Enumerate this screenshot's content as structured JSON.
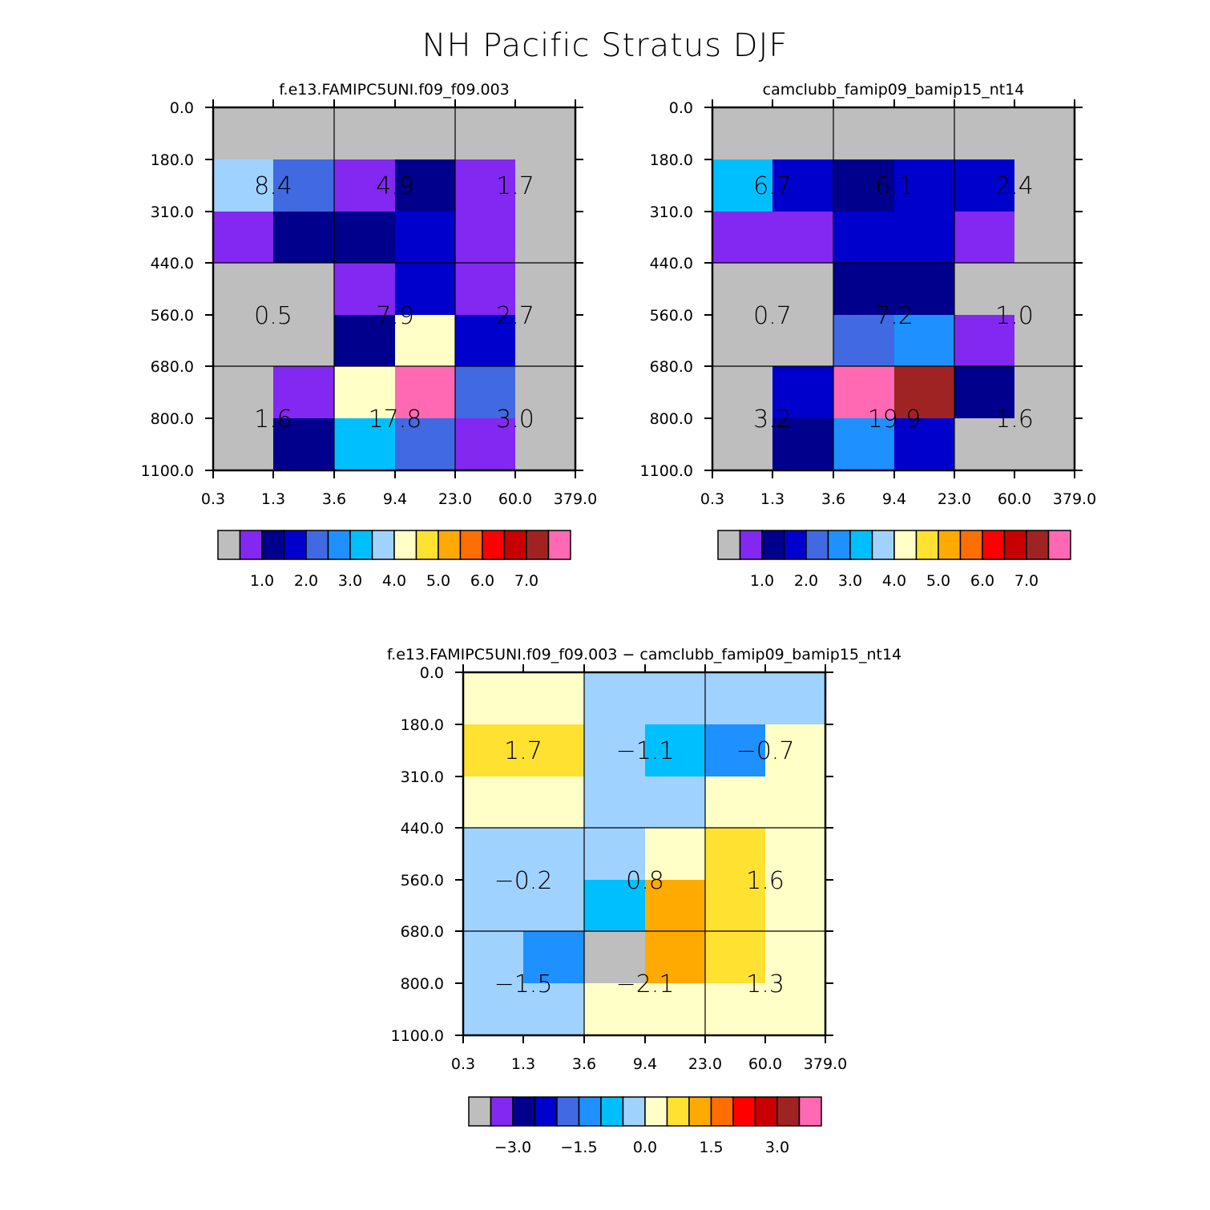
{
  "title": "NH Pacific Stratus DJF",
  "x_ticks": [
    "0.3",
    "1.3",
    "3.6",
    "9.4",
    "23.0",
    "60.0",
    "379.0"
  ],
  "y_ticks": [
    "0.0",
    "180.0",
    "310.0",
    "440.0",
    "560.0",
    "680.0",
    "800.0",
    "1100.0"
  ],
  "colormap": [
    "#bebebe",
    "#8228f0",
    "#00008c",
    "#0000cd",
    "#4169e1",
    "#1e90ff",
    "#00bfff",
    "#a0d2ff",
    "#ffffc8",
    "#ffe132",
    "#ffaa00",
    "#ff6e00",
    "#ff0000",
    "#c80000",
    "#a02323",
    "#ff69b4"
  ],
  "chart_data": [
    {
      "type": "heatmap",
      "title": "f.e13.FAMIPC5UNI.f09_f09.003",
      "cell_index_grid": [
        [
          0,
          0,
          0,
          0,
          0,
          0
        ],
        [
          7,
          4,
          1,
          2,
          1,
          0
        ],
        [
          1,
          2,
          2,
          3,
          1,
          0
        ],
        [
          0,
          0,
          1,
          3,
          1,
          0
        ],
        [
          0,
          0,
          2,
          8,
          3,
          0
        ],
        [
          0,
          1,
          8,
          15,
          4,
          0
        ],
        [
          0,
          2,
          6,
          4,
          1,
          0
        ]
      ],
      "box_labels": [
        [
          "8.4",
          "4.9",
          "1.7"
        ],
        [
          "0.5",
          "7.9",
          "2.7"
        ],
        [
          "1.6",
          "17.8",
          "3.0"
        ]
      ],
      "colorbar": {
        "labels": [
          "1.0",
          "2.0",
          "3.0",
          "4.0",
          "5.0",
          "6.0",
          "7.0"
        ]
      }
    },
    {
      "type": "heatmap",
      "title": "camclubb_famip09_bamip15_nt14",
      "cell_index_grid": [
        [
          0,
          0,
          0,
          0,
          0,
          0
        ],
        [
          6,
          3,
          2,
          3,
          3,
          0
        ],
        [
          1,
          1,
          3,
          3,
          1,
          0
        ],
        [
          0,
          0,
          2,
          2,
          0,
          0
        ],
        [
          0,
          0,
          4,
          5,
          1,
          0
        ],
        [
          0,
          3,
          15,
          14,
          2,
          0
        ],
        [
          0,
          2,
          5,
          3,
          0,
          0
        ]
      ],
      "box_labels": [
        [
          "6.7",
          "6.1",
          "2.4"
        ],
        [
          "0.7",
          "7.2",
          "1.0"
        ],
        [
          "3.2",
          "19.9",
          "1.6"
        ]
      ],
      "colorbar": {
        "labels": [
          "1.0",
          "2.0",
          "3.0",
          "4.0",
          "5.0",
          "6.0",
          "7.0"
        ]
      }
    },
    {
      "type": "heatmap",
      "title": "f.e13.FAMIPC5UNI.f09_f09.003 - camclubb_famip09_bamip15_nt14",
      "cell_index_grid": [
        [
          8,
          8,
          7,
          7,
          7,
          7
        ],
        [
          9,
          9,
          7,
          6,
          5,
          8
        ],
        [
          8,
          8,
          7,
          7,
          8,
          8
        ],
        [
          7,
          7,
          7,
          8,
          9,
          8
        ],
        [
          7,
          7,
          6,
          10,
          9,
          8
        ],
        [
          7,
          5,
          0,
          10,
          9,
          8
        ],
        [
          7,
          7,
          8,
          8,
          8,
          8
        ]
      ],
      "box_labels": [
        [
          "1.7",
          "-1.1",
          "-0.7"
        ],
        [
          "-0.2",
          "0.8",
          "1.6"
        ],
        [
          "-1.5",
          "-2.1",
          "1.3"
        ]
      ],
      "colorbar": {
        "labels": [
          "-3.0",
          "-1.5",
          "0.0",
          "1.5",
          "3.0"
        ]
      }
    }
  ]
}
